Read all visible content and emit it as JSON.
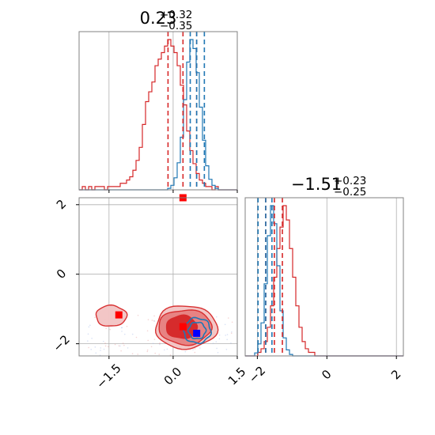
{
  "chart_data": {
    "type": "corner",
    "colors": {
      "series_a": "#d62728",
      "series_b": "#1f77b4",
      "marker_a": "#ff0000",
      "marker_b": "#0000ff",
      "grid": "#b0b0b0",
      "frame": "#808080"
    },
    "panels": [
      {
        "id": "hist_p1",
        "type": "histogram",
        "title": {
          "value": "0.23",
          "upper": "+0.32",
          "lower": "−0.35"
        },
        "xlim": [
          -2.2,
          1.5
        ],
        "grid": true,
        "series": [
          {
            "color": "#d62728",
            "bins": {
              "start": -2.2,
              "width": 0.074,
              "counts": [
                0,
                1,
                0,
                1,
                0,
                1,
                1,
                1,
                0,
                1,
                1,
                1,
                1,
                2,
                2,
                3,
                4,
                6,
                9,
                13,
                20,
                27,
                30,
                33,
                38,
                40,
                42,
                44,
                46,
                44,
                42,
                38,
                32,
                26,
                18,
                12,
                8,
                5,
                3,
                2,
                1,
                1,
                0,
                1,
                0,
                0,
                0,
                0,
                0,
                0
              ]
            },
            "quantiles": [
              -0.12,
              0.23,
              0.55
            ]
          },
          {
            "color": "#1f77b4",
            "bins": {
              "start": -2.2,
              "width": 0.074,
              "counts": [
                0,
                0,
                0,
                0,
                0,
                0,
                0,
                0,
                0,
                0,
                0,
                0,
                0,
                0,
                0,
                0,
                0,
                0,
                0,
                0,
                0,
                0,
                0,
                0,
                0,
                0,
                0,
                0,
                1,
                3,
                8,
                18,
                35,
                60,
                85,
                100,
                94,
                78,
                55,
                33,
                16,
                7,
                3,
                1,
                0,
                0,
                0,
                0,
                0,
                0
              ]
            },
            "quantiles": [
              0.4,
              0.55,
              0.73
            ]
          }
        ]
      },
      {
        "id": "scatter_p1_p2",
        "type": "contour",
        "xlim": [
          -2.2,
          1.5
        ],
        "ylim": [
          -2.35,
          2.2
        ],
        "grid": true,
        "xticks": [
          "−1.5",
          "0.0",
          "1.5"
        ],
        "xtick_values": [
          -1.5,
          0.0,
          1.5
        ],
        "yticks": [
          "−2",
          "0",
          "2"
        ],
        "ytick_values": [
          -2,
          0,
          2
        ],
        "red_regions": [
          {
            "cx": 0.3,
            "cy": -1.52,
            "rx": 0.72,
            "ry": 0.62,
            "level": 1
          },
          {
            "cx": 0.28,
            "cy": -1.52,
            "rx": 0.62,
            "ry": 0.5,
            "level": 2
          },
          {
            "cx": 0.2,
            "cy": -1.52,
            "rx": 0.36,
            "ry": 0.33,
            "level": 3
          },
          {
            "cx": -1.45,
            "cy": -1.2,
            "rx": 0.36,
            "ry": 0.3,
            "level": 1
          }
        ],
        "blue_contours": [
          {
            "cx": 0.56,
            "cy": -1.62,
            "rx": 0.32,
            "ry": 0.36
          },
          {
            "cx": 0.56,
            "cy": -1.62,
            "rx": 0.2,
            "ry": 0.24
          }
        ],
        "markers": [
          {
            "x": 0.23,
            "y": 2.2,
            "color": "#ff0000"
          },
          {
            "x": -1.27,
            "y": -1.17,
            "color": "#ff0000"
          },
          {
            "x": 0.23,
            "y": -1.51,
            "color": "#ff0000"
          },
          {
            "x": 0.55,
            "y": -1.7,
            "color": "#0000ff"
          }
        ]
      },
      {
        "id": "hist_p2",
        "type": "histogram",
        "title": {
          "value": "−1.51",
          "upper": "+0.23",
          "lower": "−0.25"
        },
        "xlim": [
          -2.35,
          2.2
        ],
        "grid": true,
        "xticks": [
          "−2",
          "0",
          "2"
        ],
        "xtick_values": [
          -2,
          0,
          2
        ],
        "series": [
          {
            "color": "#d62728",
            "bins": {
              "start": -2.35,
              "width": 0.091,
              "counts": [
                0,
                0,
                0,
                0,
                1,
                2,
                4,
                8,
                14,
                22,
                30,
                36,
                42,
                38,
                30,
                22,
                14,
                8,
                4,
                2,
                1,
                1,
                0,
                0,
                0,
                0,
                0,
                0,
                0,
                0,
                0,
                0,
                0,
                0,
                0,
                0,
                0,
                0,
                0,
                0,
                0,
                0,
                0,
                0,
                0,
                0,
                0,
                0,
                0,
                0
              ]
            },
            "quantiles": [
              -1.76,
              -1.51,
              -1.28
            ]
          },
          {
            "color": "#1f77b4",
            "bins": {
              "start": -2.35,
              "width": 0.091,
              "counts": [
                0,
                0,
                0,
                2,
                8,
                22,
                48,
                80,
                100,
                88,
                60,
                30,
                12,
                4,
                1,
                0,
                0,
                0,
                0,
                0,
                0,
                0,
                0,
                0,
                0,
                0,
                0,
                0,
                0,
                0,
                0,
                0,
                0,
                0,
                0,
                0,
                0,
                0,
                0,
                0,
                0,
                0,
                0,
                0,
                0,
                0,
                0,
                0,
                0,
                0
              ]
            },
            "quantiles": [
              -1.98,
              -1.76,
              -1.58
            ]
          }
        ]
      }
    ]
  }
}
